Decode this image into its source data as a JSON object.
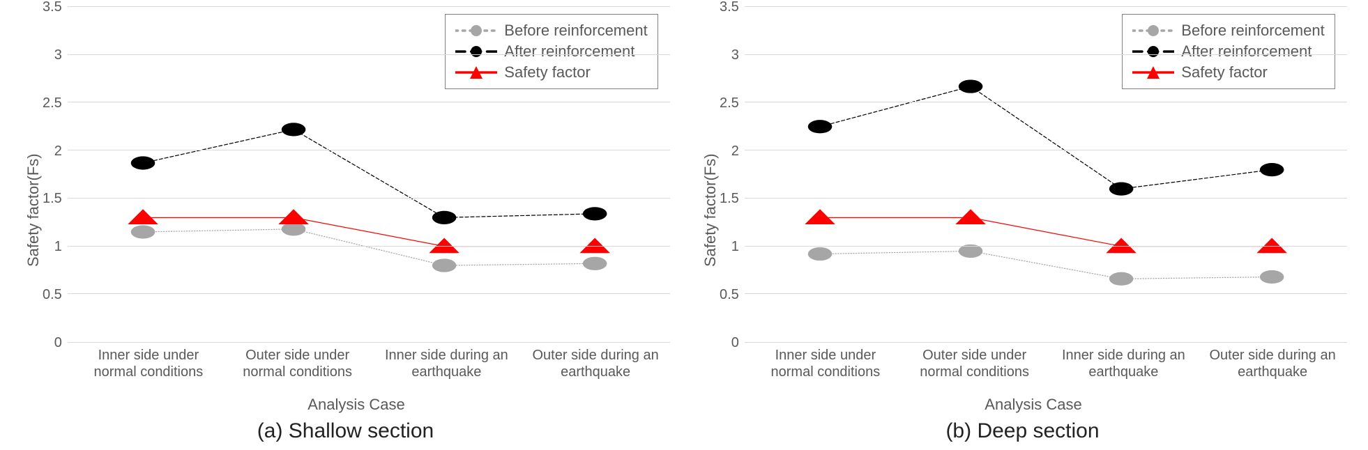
{
  "charts": [
    {
      "caption": "(a) Shallow section",
      "y_label": "Safety factor(Fs)",
      "x_label": "Analysis Case",
      "ylim": [
        0,
        3.5
      ],
      "yticks": [
        0,
        0.5,
        1,
        1.5,
        2,
        2.5,
        3,
        3.5
      ],
      "categories": [
        "Inner side under normal conditions",
        "Outer side under normal conditions",
        "Inner side during an earthquake",
        "Outer side during an earthquake"
      ],
      "series": [
        {
          "name": "Before reinforcement",
          "values": [
            1.15,
            1.18,
            0.8,
            0.82
          ],
          "color": "#a6a6a6",
          "line_style": "dotted",
          "line_width": 3.5,
          "marker": "circle",
          "marker_size": 8,
          "marker_fill": "#a6a6a6"
        },
        {
          "name": "After reinforcement",
          "values": [
            1.87,
            2.22,
            1.3,
            1.34
          ],
          "color": "#000000",
          "line_style": "dashed",
          "line_width": 3.5,
          "marker": "circle",
          "marker_size": 8,
          "marker_fill": "#000000"
        },
        {
          "name": "Safety factor",
          "values": [
            1.3,
            1.3,
            1.0,
            1.0
          ],
          "color": "#ff0000",
          "line_style": "solid",
          "line_width": 3.5,
          "marker": "triangle",
          "marker_size": 9,
          "marker_fill": "#ff0000"
        }
      ],
      "grid_color": "#d9d9d9",
      "background_color": "#ffffff",
      "tick_fontsize": 20,
      "label_fontsize": 22,
      "caption_fontsize": 30
    },
    {
      "caption": "(b) Deep section",
      "y_label": "Safety factor(Fs)",
      "x_label": "Analysis Case",
      "ylim": [
        0,
        3.5
      ],
      "yticks": [
        0,
        0.5,
        1,
        1.5,
        2,
        2.5,
        3,
        3.5
      ],
      "categories": [
        "Inner side under normal conditions",
        "Outer side under normal conditions",
        "Inner side during an earthquake",
        "Outer side during an earthquake"
      ],
      "series": [
        {
          "name": "Before reinforcement",
          "values": [
            0.92,
            0.95,
            0.66,
            0.68
          ],
          "color": "#a6a6a6",
          "line_style": "dotted",
          "line_width": 3.5,
          "marker": "circle",
          "marker_size": 8,
          "marker_fill": "#a6a6a6"
        },
        {
          "name": "After reinforcement",
          "values": [
            2.25,
            2.67,
            1.6,
            1.8
          ],
          "color": "#000000",
          "line_style": "dashed",
          "line_width": 3.5,
          "marker": "circle",
          "marker_size": 8,
          "marker_fill": "#000000"
        },
        {
          "name": "Safety factor",
          "values": [
            1.3,
            1.3,
            1.0,
            1.0
          ],
          "color": "#ff0000",
          "line_style": "solid",
          "line_width": 3.5,
          "marker": "triangle",
          "marker_size": 9,
          "marker_fill": "#ff0000"
        }
      ],
      "grid_color": "#d9d9d9",
      "background_color": "#ffffff",
      "tick_fontsize": 20,
      "label_fontsize": 22,
      "caption_fontsize": 30
    }
  ]
}
